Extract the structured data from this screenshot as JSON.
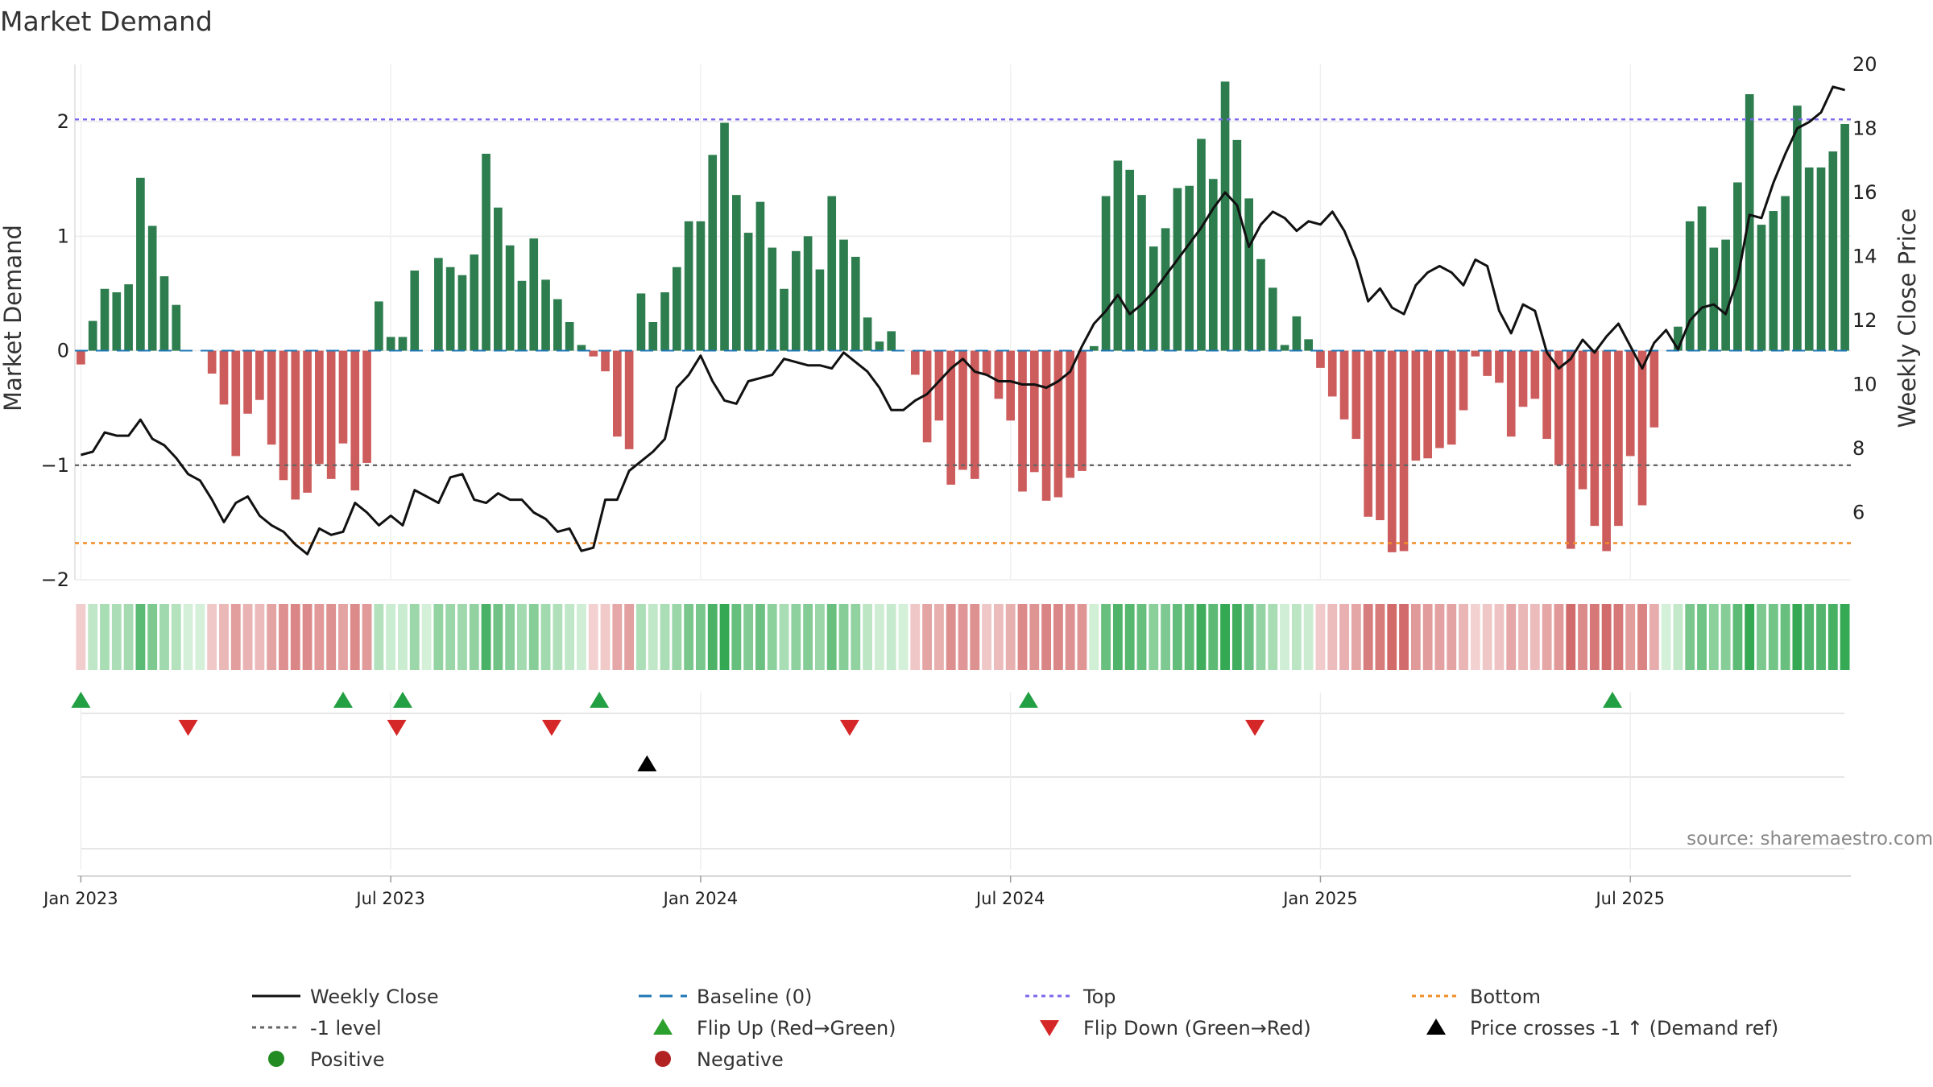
{
  "chart_data": {
    "type": "bar+line",
    "title": "Market Demand",
    "ylabel_left": "Market Demand",
    "ylabel_right": "Weekly Close Price",
    "y_left_range": [
      -2.0,
      2.5
    ],
    "y_right_range": [
      3.9,
      20.0
    ],
    "y_left_ticks": [
      "2",
      "1",
      "0",
      "−1",
      "−2"
    ],
    "y_left_tick_values": [
      2,
      1,
      0,
      -1,
      -2
    ],
    "y_right_ticks": [
      "20",
      "18",
      "16",
      "14",
      "12",
      "10",
      "8",
      "6"
    ],
    "y_right_tick_values": [
      20,
      18,
      16,
      14,
      12,
      10,
      8,
      6
    ],
    "x_ticks": [
      "Jan 2023",
      "Jul 2023",
      "Jan 2024",
      "Jul 2024",
      "Jan 2025",
      "Jul 2025"
    ],
    "x_tick_weeks": [
      0.5,
      26.5,
      52.5,
      78.5,
      104.5,
      130.5
    ],
    "reference_lines": [
      {
        "name": "Top",
        "value": 2.02,
        "color": "#7b68ee"
      },
      {
        "name": "-1 level",
        "value": -1.0,
        "color": "#666666"
      },
      {
        "name": "Bottom",
        "value": -1.68,
        "color": "#f28c28"
      },
      {
        "name": "Baseline (0)",
        "value": 0,
        "color": "#1f77b4"
      }
    ],
    "series": [
      {
        "name": "Market Demand",
        "type": "bar",
        "values": [
          -0.12,
          0.26,
          0.54,
          0.51,
          0.58,
          1.51,
          1.09,
          0.65,
          0.4,
          0,
          0,
          -0.2,
          -0.47,
          -0.92,
          -0.55,
          -0.43,
          -0.82,
          -1.13,
          -1.3,
          -1.24,
          -0.99,
          -1.12,
          -0.81,
          -1.22,
          -0.98,
          0.43,
          0.12,
          0.12,
          0.7,
          0,
          0.81,
          0.73,
          0.66,
          0.84,
          1.72,
          1.25,
          0.92,
          0.61,
          0.98,
          0.62,
          0.45,
          0.25,
          0.05,
          -0.05,
          -0.18,
          -0.75,
          -0.86,
          0.5,
          0.25,
          0.51,
          0.73,
          1.13,
          1.13,
          1.71,
          1.99,
          1.36,
          1.03,
          1.3,
          0.9,
          0.54,
          0.87,
          1.0,
          0.71,
          1.35,
          0.97,
          0.82,
          0.29,
          0.08,
          0.17,
          0,
          -0.21,
          -0.8,
          -0.61,
          -1.17,
          -1.04,
          -1.12,
          -0.21,
          -0.42,
          -0.61,
          -1.23,
          -1.06,
          -1.31,
          -1.28,
          -1.11,
          -1.05,
          0.04,
          1.35,
          1.66,
          1.58,
          1.36,
          0.91,
          1.07,
          1.42,
          1.44,
          1.85,
          1.5,
          2.35,
          1.84,
          1.33,
          0.8,
          0.55,
          0.05,
          0.3,
          0.1,
          -0.15,
          -0.4,
          -0.6,
          -0.77,
          -1.45,
          -1.48,
          -1.76,
          -1.75,
          -0.96,
          -0.94,
          -0.85,
          -0.82,
          -0.52,
          -0.05,
          -0.22,
          -0.28,
          -0.75,
          -0.49,
          -0.42,
          -0.77,
          -1.0,
          -1.73,
          -1.21,
          -1.53,
          -1.75,
          -1.53,
          -0.92,
          -1.35,
          -0.67,
          0,
          0.21,
          1.13,
          1.26,
          0.9,
          0.97,
          1.47,
          2.24,
          1.1,
          1.22,
          1.35,
          2.14,
          1.6,
          1.6,
          1.74,
          1.98
        ]
      },
      {
        "name": "Weekly Close",
        "type": "line",
        "axis": "right",
        "values": [
          7.8,
          7.9,
          8.5,
          8.4,
          8.4,
          8.9,
          8.3,
          8.1,
          7.7,
          7.2,
          7.0,
          6.4,
          5.7,
          6.3,
          6.5,
          5.9,
          5.6,
          5.4,
          5.0,
          4.7,
          5.5,
          5.3,
          5.4,
          6.3,
          6.0,
          5.6,
          5.9,
          5.6,
          6.7,
          6.5,
          6.3,
          7.1,
          7.2,
          6.4,
          6.3,
          6.6,
          6.4,
          6.4,
          6.0,
          5.8,
          5.4,
          5.5,
          4.8,
          4.9,
          6.4,
          6.4,
          7.3,
          7.6,
          7.9,
          8.3,
          9.9,
          10.3,
          10.9,
          10.1,
          9.5,
          9.4,
          10.1,
          10.2,
          10.3,
          10.8,
          10.7,
          10.6,
          10.6,
          10.5,
          11.0,
          10.7,
          10.4,
          9.9,
          9.2,
          9.2,
          9.5,
          9.7,
          10.1,
          10.5,
          10.8,
          10.4,
          10.3,
          10.1,
          10.1,
          10.0,
          10.0,
          9.9,
          10.1,
          10.4,
          11.2,
          11.9,
          12.3,
          12.8,
          12.2,
          12.5,
          12.9,
          13.4,
          13.9,
          14.4,
          14.9,
          15.5,
          16.0,
          15.6,
          14.3,
          15.0,
          15.4,
          15.2,
          14.8,
          15.1,
          15.0,
          15.4,
          14.8,
          13.9,
          12.6,
          13.0,
          12.4,
          12.2,
          13.1,
          13.5,
          13.7,
          13.5,
          13.1,
          13.9,
          13.7,
          12.3,
          11.6,
          12.5,
          12.3,
          11.0,
          10.5,
          10.8,
          11.4,
          11.0,
          11.5,
          11.9,
          11.2,
          10.5,
          11.3,
          11.7,
          11.1,
          12.0,
          12.4,
          12.5,
          12.2,
          13.3,
          15.3,
          15.2,
          16.3,
          17.2,
          18.0,
          18.2,
          18.5,
          19.3,
          19.2
        ]
      }
    ],
    "heat_strip": "per-week color by demand sign and magnitude",
    "flip_up_weeks": [
      0.5,
      22.5,
      27.5,
      44,
      80,
      129
    ],
    "flip_down_weeks": [
      9.5,
      27,
      40,
      65,
      99
    ],
    "price_cross_weeks": [
      48
    ]
  },
  "legend": [
    {
      "label": "Weekly Close",
      "symbol": "line-solid",
      "color": "#111111"
    },
    {
      "label": "Baseline (0)",
      "symbol": "line-dash",
      "color": "#1f77b4"
    },
    {
      "label": "Top",
      "symbol": "line-dot",
      "color": "#7b68ee"
    },
    {
      "label": "Bottom",
      "symbol": "line-dot",
      "color": "#f28c28"
    },
    {
      "label": "-1 level",
      "symbol": "line-dot",
      "color": "#666666"
    },
    {
      "label": "Flip Up (Red→Green)",
      "symbol": "triangle-up",
      "color": "#2ca02c"
    },
    {
      "label": "Flip Down (Green→Red)",
      "symbol": "triangle-down",
      "color": "#d62728"
    },
    {
      "label": "Price crosses -1 ↑ (Demand ref)",
      "symbol": "triangle-up",
      "color": "#000000"
    },
    {
      "label": "Positive",
      "symbol": "circle",
      "color": "#228b22"
    },
    {
      "label": "Negative",
      "symbol": "circle",
      "color": "#b22222"
    }
  ],
  "source": "source: sharemaestro.com",
  "colors": {
    "positive_bar": "#2e7d4f",
    "negative_bar": "#cd5c5c"
  }
}
